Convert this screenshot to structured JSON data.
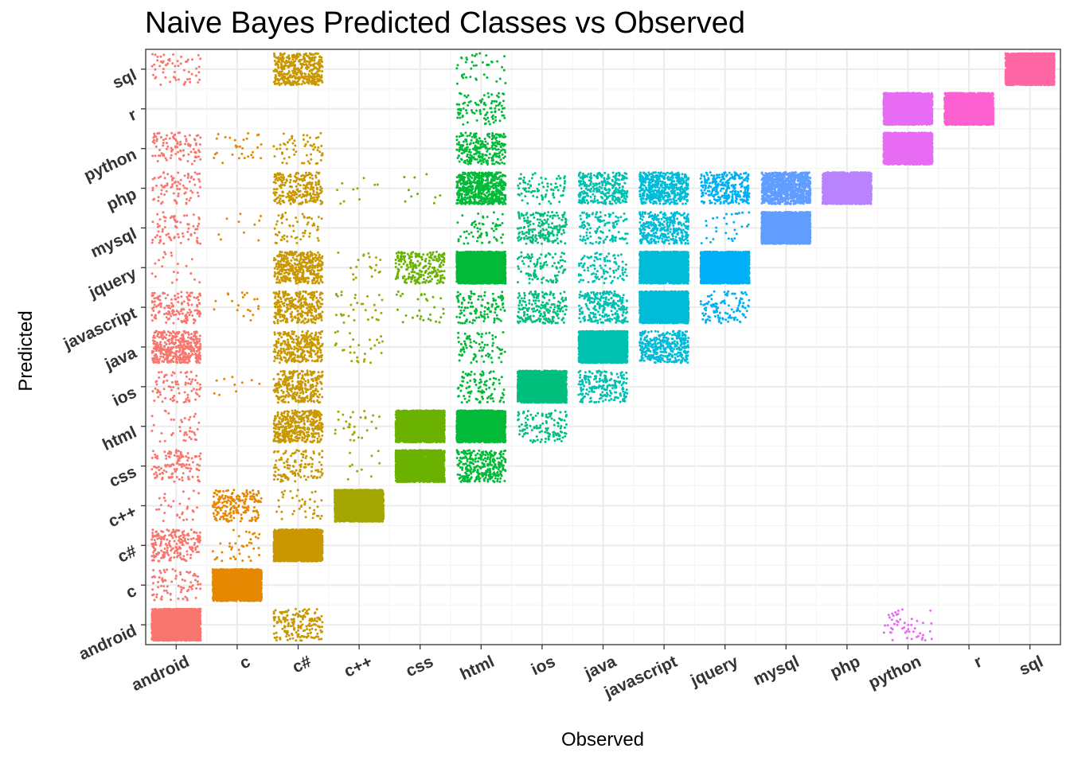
{
  "chart_data": {
    "type": "scatter",
    "title": "Naive Bayes Predicted Classes vs Observed",
    "xlabel": "Observed",
    "ylabel": "Predicted",
    "categories": [
      "android",
      "c",
      "c#",
      "c++",
      "css",
      "html",
      "ios",
      "java",
      "javascript",
      "jquery",
      "mysql",
      "php",
      "python",
      "r",
      "sql"
    ],
    "x": [
      "android",
      "c",
      "c#",
      "c++",
      "css",
      "html",
      "ios",
      "java",
      "javascript",
      "jquery",
      "mysql",
      "php",
      "python",
      "r",
      "sql"
    ],
    "y": [
      "android",
      "c",
      "c#",
      "c++",
      "css",
      "html",
      "ios",
      "java",
      "javascript",
      "jquery",
      "mysql",
      "php",
      "python",
      "r",
      "sql"
    ],
    "colors": {
      "android": "#F8766D",
      "c": "#E58700",
      "c#": "#C99800",
      "c++": "#A3A500",
      "css": "#6BB100",
      "html": "#00BA38",
      "ios": "#00BF7D",
      "java": "#00C0AF",
      "javascript": "#00BCD8",
      "jquery": "#00B0F6",
      "mysql": "#619CFF",
      "php": "#B983FF",
      "python": "#E76BF3",
      "r": "#FD61D1",
      "sql": "#FF67A4"
    },
    "jitter": true,
    "grid": true,
    "legend": "none",
    "counts": [
      [
        3000,
        0,
        180,
        0,
        0,
        0,
        0,
        0,
        0,
        0,
        0,
        0,
        50,
        0,
        0
      ],
      [
        80,
        3000,
        0,
        0,
        0,
        0,
        0,
        0,
        0,
        0,
        0,
        0,
        0,
        0,
        0
      ],
      [
        200,
        40,
        3000,
        0,
        0,
        0,
        0,
        0,
        0,
        0,
        0,
        0,
        0,
        0,
        0
      ],
      [
        30,
        200,
        40,
        3000,
        0,
        0,
        0,
        0,
        0,
        0,
        0,
        0,
        0,
        0,
        0
      ],
      [
        120,
        0,
        120,
        10,
        3000,
        300,
        0,
        0,
        0,
        0,
        0,
        0,
        0,
        0,
        0
      ],
      [
        40,
        0,
        400,
        30,
        3000,
        3000,
        120,
        0,
        0,
        0,
        0,
        0,
        0,
        0,
        0
      ],
      [
        80,
        10,
        300,
        0,
        0,
        100,
        3000,
        200,
        0,
        0,
        0,
        0,
        0,
        0,
        0
      ],
      [
        400,
        0,
        300,
        30,
        0,
        80,
        0,
        3000,
        400,
        0,
        0,
        0,
        0,
        0,
        0
      ],
      [
        150,
        20,
        300,
        30,
        30,
        120,
        200,
        250,
        3000,
        120,
        0,
        0,
        0,
        0,
        0
      ],
      [
        20,
        0,
        400,
        20,
        250,
        3000,
        100,
        100,
        3000,
        3000,
        0,
        0,
        0,
        0,
        0
      ],
      [
        70,
        10,
        60,
        0,
        0,
        60,
        200,
        120,
        350,
        30,
        3000,
        0,
        0,
        0,
        0
      ],
      [
        80,
        0,
        250,
        10,
        10,
        600,
        80,
        300,
        500,
        300,
        1000,
        3000,
        0,
        0,
        0
      ],
      [
        100,
        30,
        60,
        0,
        0,
        250,
        0,
        0,
        0,
        0,
        0,
        0,
        3000,
        0,
        0
      ],
      [
        0,
        0,
        0,
        0,
        0,
        100,
        0,
        0,
        0,
        0,
        0,
        0,
        3000,
        3000,
        0
      ],
      [
        60,
        0,
        400,
        0,
        0,
        40,
        0,
        0,
        0,
        0,
        0,
        0,
        0,
        0,
        3000
      ]
    ]
  }
}
